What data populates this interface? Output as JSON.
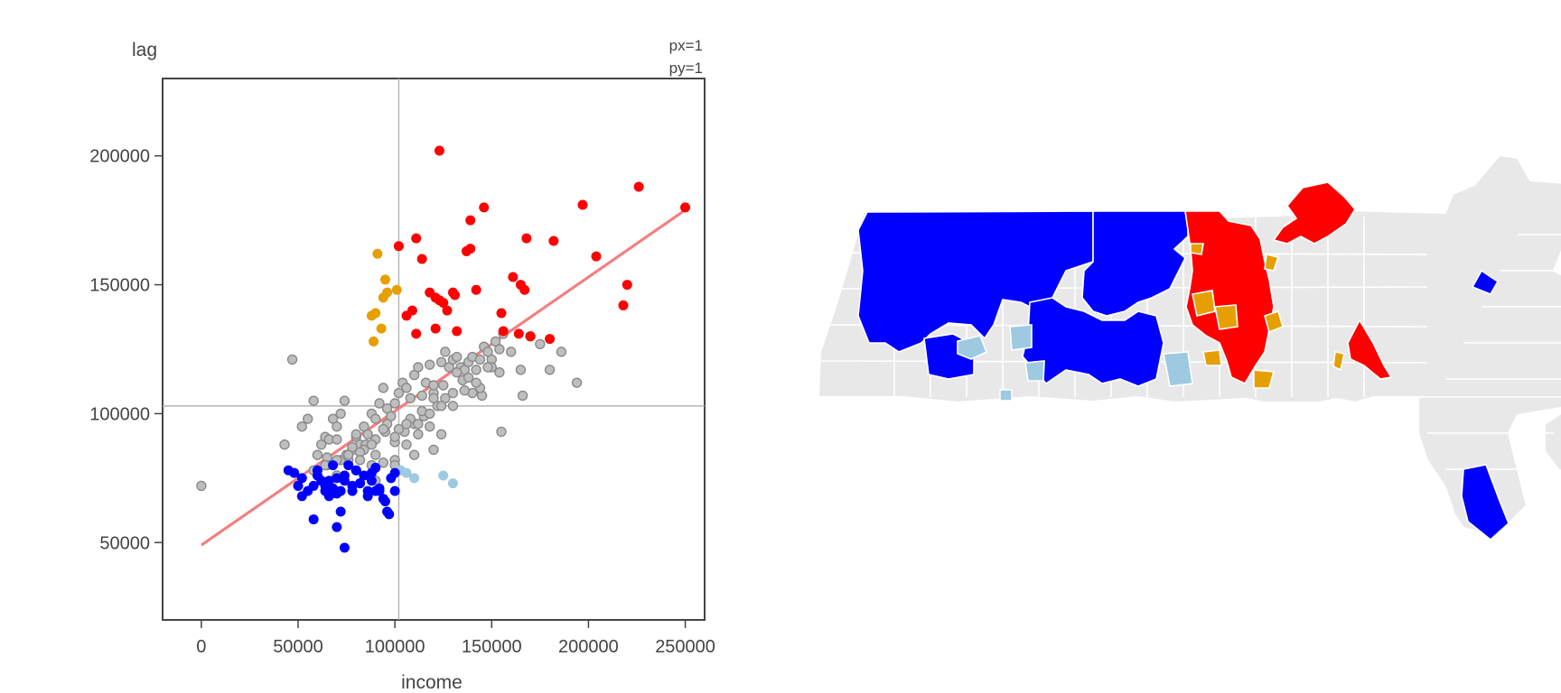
{
  "chart_data": {
    "type": "scatter",
    "xlabel": "income",
    "ylabel": "lag",
    "annotation": [
      "px=1",
      "py=1"
    ],
    "xlim": [
      -20000,
      260000
    ],
    "ylim": [
      20000,
      230000
    ],
    "xticks": [
      0,
      50000,
      100000,
      150000,
      200000,
      250000
    ],
    "yticks": [
      50000,
      100000,
      150000,
      200000
    ],
    "mean_x": 102000,
    "mean_y": 103000,
    "regression": {
      "x": [
        0,
        250000
      ],
      "y": [
        49000,
        179000
      ],
      "color": "#f28080"
    },
    "grid": false,
    "legend": "none",
    "colors": {
      "high-high": "#ff0000",
      "low-low": "#0000ff",
      "low-high": "#e69f00",
      "high-low": "#9ecae1",
      "not-significant": "#bebebe",
      "map-background": "#e8e8e8"
    },
    "series": [
      {
        "group": "high-high",
        "color": "#ff0000",
        "x": [
          123000,
          102000,
          111000,
          114000,
          146000,
          139000,
          137000,
          139000,
          106000,
          109000,
          118000,
          121000,
          123000,
          125000,
          127000,
          130000,
          131000,
          142000,
          111000,
          121000,
          132000,
          155000,
          161000,
          165000,
          170000,
          167000,
          168000,
          182000,
          197000,
          204000,
          218000,
          220000,
          226000,
          250000,
          180000,
          164000,
          156000
        ],
        "y": [
          202000,
          165000,
          168000,
          160000,
          180000,
          175000,
          163000,
          164000,
          138000,
          140000,
          147000,
          145000,
          144000,
          143000,
          140000,
          147000,
          146000,
          148000,
          131000,
          133000,
          132000,
          139000,
          153000,
          150000,
          130000,
          148000,
          168000,
          167000,
          181000,
          161000,
          142000,
          150000,
          188000,
          180000,
          129000,
          131000,
          132000
        ]
      },
      {
        "group": "low-low",
        "color": "#0000ff",
        "x": [
          45000,
          48000,
          50000,
          52000,
          55000,
          58000,
          60000,
          62000,
          64000,
          66000,
          68000,
          70000,
          72000,
          74000,
          76000,
          78000,
          80000,
          82000,
          84000,
          86000,
          88000,
          90000,
          92000,
          94000,
          96000,
          98000,
          100000,
          52000,
          58000,
          66000,
          70000,
          72000,
          74000,
          78000,
          82000,
          86000,
          90000,
          95000,
          97000,
          100000,
          60000,
          66000,
          70000,
          74000,
          64000,
          68000,
          88000,
          92000
        ],
        "y": [
          78000,
          77000,
          72000,
          75000,
          70000,
          72000,
          76000,
          74000,
          70000,
          72000,
          71000,
          75000,
          70000,
          74000,
          80000,
          72000,
          78000,
          73000,
          76000,
          70000,
          74000,
          79000,
          70000,
          67000,
          62000,
          75000,
          77000,
          68000,
          59000,
          68000,
          56000,
          62000,
          48000,
          70000,
          73000,
          68000,
          70000,
          66000,
          61000,
          70000,
          78000,
          74000,
          69000,
          76000,
          72000,
          80000,
          77000,
          71000
        ]
      },
      {
        "group": "low-high",
        "color": "#e69f00",
        "x": [
          91000,
          95000,
          88000,
          90000,
          101000,
          96000,
          93000,
          94000,
          89000
        ],
        "y": [
          162000,
          152000,
          138000,
          139000,
          148000,
          147000,
          133000,
          145000,
          128000
        ]
      },
      {
        "group": "high-low",
        "color": "#9ecae1",
        "x": [
          106000,
          110000,
          125000,
          130000,
          103000
        ],
        "y": [
          77000,
          75000,
          76000,
          73000,
          78000
        ]
      },
      {
        "group": "not-significant",
        "color": "#bebebe",
        "x": [
          0,
          47000,
          43000,
          52000,
          55000,
          58000,
          60000,
          62000,
          64000,
          66000,
          68000,
          70000,
          72000,
          74000,
          76000,
          78000,
          80000,
          82000,
          84000,
          86000,
          88000,
          90000,
          92000,
          94000,
          96000,
          98000,
          100000,
          102000,
          104000,
          106000,
          108000,
          110000,
          112000,
          114000,
          116000,
          118000,
          120000,
          122000,
          124000,
          126000,
          128000,
          130000,
          132000,
          134000,
          136000,
          138000,
          140000,
          142000,
          144000,
          146000,
          148000,
          150000,
          152000,
          154000,
          156000,
          160000,
          165000,
          170000,
          175000,
          180000,
          186000,
          194000,
          60000,
          65000,
          70000,
          75000,
          80000,
          85000,
          90000,
          95000,
          100000,
          105000,
          110000,
          115000,
          120000,
          125000,
          130000,
          135000,
          140000,
          145000,
          150000,
          65000,
          72000,
          78000,
          84000,
          90000,
          96000,
          102000,
          108000,
          114000,
          120000,
          126000,
          132000,
          138000,
          144000,
          75000,
          82000,
          88000,
          94000,
          100000,
          106000,
          112000,
          118000,
          124000,
          130000,
          136000,
          142000,
          148000,
          154000,
          58000,
          64000,
          70000,
          76000,
          82000,
          88000,
          94000,
          100000,
          106000,
          112000,
          118000,
          124000,
          70000,
          80000,
          90000,
          100000,
          110000,
          120000,
          155000,
          166000
        ],
        "y": [
          72000,
          121000,
          88000,
          95000,
          98000,
          105000,
          84000,
          88000,
          91000,
          90000,
          98000,
          95000,
          100000,
          105000,
          82000,
          86000,
          91000,
          88000,
          95000,
          92000,
          100000,
          98000,
          104000,
          110000,
          102000,
          99000,
          104000,
          108000,
          112000,
          110000,
          106000,
          115000,
          118000,
          107000,
          112000,
          119000,
          108000,
          103000,
          120000,
          124000,
          118000,
          121000,
          122000,
          118000,
          117000,
          120000,
          122000,
          117000,
          121000,
          126000,
          124000,
          121000,
          128000,
          125000,
          131000,
          124000,
          117000,
          130000,
          127000,
          117000,
          124000,
          112000,
          84000,
          83000,
          90000,
          84000,
          92000,
          88000,
          84000,
          93000,
          89000,
          93000,
          96000,
          99000,
          106000,
          111000,
          108000,
          113000,
          108000,
          107000,
          118000,
          80000,
          82000,
          87000,
          86000,
          90000,
          96000,
          94000,
          98000,
          101000,
          111000,
          106000,
          116000,
          114000,
          110000,
          84000,
          85000,
          88000,
          94000,
          91000,
          96000,
          96000,
          100000,
          103000,
          103000,
          109000,
          112000,
          118000,
          116000,
          78000,
          80000,
          82000,
          84000,
          82000,
          80000,
          81000,
          82000,
          88000,
          92000,
          95000,
          92000,
          76000,
          78000,
          74000,
          80000,
          84000,
          86000,
          93000,
          107000
        ]
      }
    ]
  }
}
